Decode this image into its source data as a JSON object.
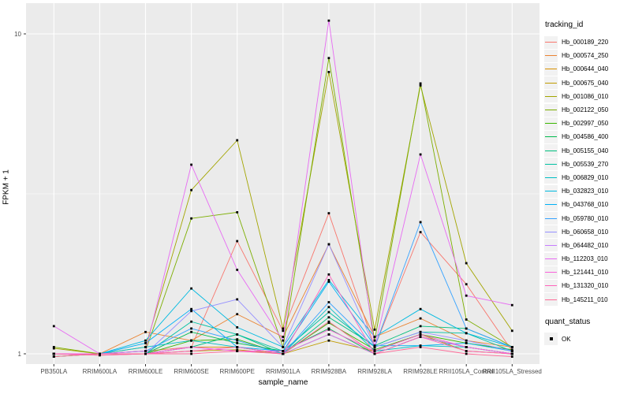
{
  "figure": {
    "panel_background": "#EBEBEB",
    "grid_color": "#FFFFFF",
    "tick_label_color": "#4D4D4D",
    "axis_title_color": "#000000",
    "point_color": "#000000",
    "legend_key_fill": "#F2F2F2"
  },
  "axes": {
    "x_title": "sample_name",
    "y_title": "FPKM + 1",
    "y_breaks": [
      {
        "value": 1,
        "label": "1"
      },
      {
        "value": 10,
        "label": "10"
      }
    ],
    "y_minor_breaks": [
      3.1623
    ]
  },
  "legend": {
    "tracking_title": "tracking_id",
    "quant_title": "quant_status",
    "quant_item_label": "OK"
  },
  "chart_data": {
    "type": "line",
    "title": "",
    "xlabel": "sample_name",
    "ylabel": "FPKM + 1",
    "y_scale": "log10",
    "ylim": [
      0.93,
      12.5
    ],
    "grid": true,
    "legend_position": "right",
    "point_marker": "black-filled-square (quant_status OK)",
    "categories": [
      "PB350LA",
      "RRIM600LA",
      "RRIM600LE",
      "RRIM600SE",
      "RRIM600PE",
      "RRIM901LA",
      "RRIM928BA",
      "RRIM928LA",
      "RRIM928LE",
      "RRII105LA_Control",
      "RRII105LA_Stressed"
    ],
    "series": [
      {
        "name": "Hb_000189_220",
        "color": "#F8766D",
        "values": [
          1.0,
          1.0,
          1.02,
          1.05,
          2.25,
          1.18,
          2.75,
          1.05,
          2.4,
          1.65,
          1.02
        ]
      },
      {
        "name": "Hb_000574_250",
        "color": "#EA8331",
        "values": [
          1.0,
          1.0,
          1.17,
          1.1,
          1.33,
          1.13,
          2.2,
          1.13,
          1.29,
          1.1,
          1.05
        ]
      },
      {
        "name": "Hb_000644_040",
        "color": "#D89000",
        "values": [
          0.98,
          1.0,
          1.0,
          1.05,
          1.05,
          1.0,
          1.15,
          1.0,
          1.13,
          1.05,
          1.0
        ]
      },
      {
        "name": "Hb_000675_040",
        "color": "#C09B00",
        "values": [
          1.0,
          0.99,
          1.0,
          1.02,
          1.03,
          1.0,
          1.1,
          1.02,
          1.15,
          1.02,
          1.0
        ]
      },
      {
        "name": "Hb_001086_010",
        "color": "#A3A500",
        "values": [
          1.04,
          1.0,
          1.05,
          3.25,
          4.65,
          1.2,
          7.6,
          1.19,
          6.9,
          1.92,
          1.18
        ]
      },
      {
        "name": "Hb_002122_050",
        "color": "#7CAE00",
        "values": [
          1.05,
          1.0,
          1.02,
          2.65,
          2.77,
          1.05,
          8.4,
          1.1,
          7.0,
          1.28,
          1.05
        ]
      },
      {
        "name": "Hb_002997_050",
        "color": "#39B600",
        "values": [
          1.0,
          1.0,
          1.0,
          1.1,
          1.11,
          1.0,
          1.25,
          1.03,
          1.15,
          1.08,
          1.03
        ]
      },
      {
        "name": "Hb_004586_400",
        "color": "#00BB4E",
        "values": [
          1.0,
          1.0,
          1.0,
          1.17,
          1.08,
          1.02,
          1.2,
          1.0,
          1.13,
          1.05,
          1.0
        ]
      },
      {
        "name": "Hb_005155_040",
        "color": "#00BF7D",
        "values": [
          0.98,
          1.0,
          1.0,
          1.05,
          1.15,
          1.0,
          1.3,
          1.06,
          1.22,
          1.2,
          1.05
        ]
      },
      {
        "name": "Hb_005539_270",
        "color": "#00C1A3",
        "values": [
          1.0,
          1.0,
          1.0,
          1.26,
          1.15,
          1.02,
          1.35,
          1.05,
          1.17,
          1.16,
          1.02
        ]
      },
      {
        "name": "Hb_006829_010",
        "color": "#00BFC4",
        "values": [
          1.0,
          1.0,
          1.05,
          1.1,
          1.05,
          1.0,
          1.4,
          1.02,
          1.06,
          1.05,
          1.0
        ]
      },
      {
        "name": "Hb_032823_010",
        "color": "#00BAE0",
        "values": [
          1.0,
          1.0,
          1.1,
          1.6,
          1.21,
          1.05,
          1.7,
          1.13,
          1.38,
          1.16,
          1.05
        ]
      },
      {
        "name": "Hb_043768_010",
        "color": "#00B0F6",
        "values": [
          1.0,
          1.0,
          1.08,
          1.38,
          1.05,
          1.02,
          1.68,
          1.06,
          1.06,
          1.08,
          1.02
        ]
      },
      {
        "name": "Hb_059780_010",
        "color": "#35A2FF",
        "values": [
          1.0,
          1.0,
          1.02,
          1.2,
          1.1,
          1.0,
          1.45,
          1.05,
          2.58,
          1.2,
          1.05
        ]
      },
      {
        "name": "Hb_060658_010",
        "color": "#9590FF",
        "values": [
          1.0,
          1.0,
          1.0,
          1.36,
          1.48,
          1.05,
          2.2,
          1.05,
          1.17,
          1.1,
          1.02
        ]
      },
      {
        "name": "Hb_064482_010",
        "color": "#C77CFF",
        "values": [
          1.0,
          1.0,
          1.0,
          1.05,
          1.02,
          1.0,
          1.15,
          1.0,
          1.13,
          1.05,
          1.0
        ]
      },
      {
        "name": "Hb_112203_010",
        "color": "#E76BF3",
        "values": [
          1.22,
          1.0,
          1.02,
          3.9,
          1.83,
          1.1,
          11.0,
          1.05,
          4.2,
          1.52,
          1.42
        ]
      },
      {
        "name": "Hb_121441_010",
        "color": "#FA62DB",
        "values": [
          1.0,
          1.0,
          1.0,
          1.05,
          1.02,
          1.02,
          1.19,
          1.02,
          1.15,
          1.05,
          1.0
        ]
      },
      {
        "name": "Hb_131320_010",
        "color": "#FF62BC",
        "values": [
          1.0,
          0.99,
          1.0,
          1.02,
          1.05,
          1.0,
          1.77,
          1.0,
          1.13,
          1.02,
          1.0
        ]
      },
      {
        "name": "Hb_145211_010",
        "color": "#FF6A98",
        "values": [
          0.98,
          1.0,
          1.0,
          1.0,
          1.02,
          1.0,
          1.26,
          1.0,
          1.05,
          1.0,
          0.98
        ]
      }
    ],
    "quant_status": "OK"
  }
}
